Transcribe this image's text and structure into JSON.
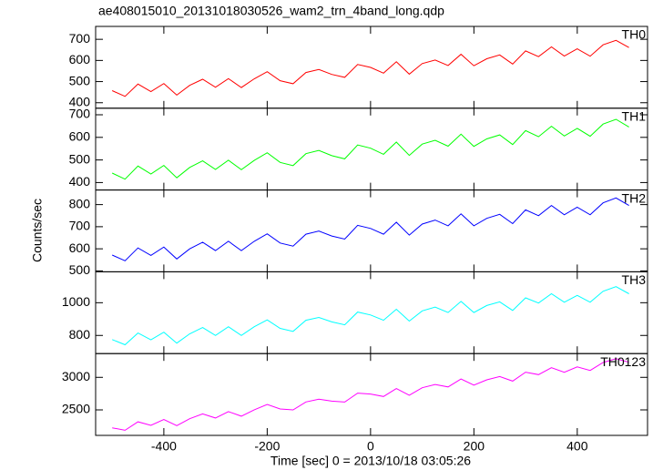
{
  "chart_data": {
    "type": "line",
    "title": "ae408015010_20131018030526_wam2_trn_4band_long.qdp",
    "xlabel": "Time [sec] 0 = 2013/10/18 03:05:26",
    "ylabel": "Counts/sec",
    "x": [
      -500,
      -475,
      -450,
      -425,
      -400,
      -375,
      -350,
      -325,
      -300,
      -275,
      -250,
      -225,
      -200,
      -175,
      -150,
      -125,
      -100,
      -75,
      -50,
      -25,
      0,
      25,
      50,
      75,
      100,
      125,
      150,
      175,
      200,
      225,
      250,
      275,
      300,
      325,
      350,
      375,
      400,
      425,
      450,
      475,
      500
    ],
    "xlim": [
      -532,
      536
    ],
    "xticks": [
      -400,
      -200,
      0,
      200,
      400
    ],
    "panels": [
      {
        "name": "TH0",
        "color": "#ff0000",
        "ylim": [
          374,
          761
        ],
        "yticks": [
          400,
          500,
          600,
          700
        ],
        "values": [
          457,
          430,
          488,
          453,
          491,
          436,
          482,
          511,
          473,
          514,
          472,
          513,
          547,
          504,
          490,
          543,
          557,
          534,
          520,
          581,
          567,
          540,
          594,
          535,
          585,
          602,
          576,
          629,
          575,
          608,
          626,
          583,
          645,
          618,
          664,
          621,
          655,
          620,
          674,
          695,
          661
        ]
      },
      {
        "name": "TH1",
        "color": "#00ff00",
        "ylim": [
          367,
          729
        ],
        "yticks": [
          400,
          500,
          600,
          700
        ],
        "values": [
          442,
          415,
          473,
          438,
          476,
          421,
          467,
          496,
          458,
          499,
          457,
          498,
          532,
          489,
          475,
          528,
          542,
          519,
          505,
          566,
          552,
          525,
          579,
          520,
          570,
          587,
          561,
          614,
          560,
          593,
          611,
          568,
          630,
          603,
          649,
          606,
          640,
          605,
          659,
          680,
          646
        ]
      },
      {
        "name": "TH2",
        "color": "#0000ff",
        "ylim": [
          496,
          866
        ],
        "yticks": [
          500,
          600,
          700,
          800
        ],
        "values": [
          572,
          546,
          604,
          570,
          608,
          554,
          600,
          630,
          592,
          634,
          592,
          634,
          668,
          626,
          612,
          666,
          680,
          658,
          644,
          706,
          692,
          666,
          720,
          662,
          712,
          730,
          704,
          758,
          704,
          738,
          756,
          714,
          776,
          750,
          796,
          754,
          788,
          754,
          808,
          830,
          796
        ]
      },
      {
        "name": "TH3",
        "color": "#00ffff",
        "ylim": [
          689,
          1189
        ],
        "yticks": [
          800,
          1000
        ],
        "values": [
          775,
          743,
          815,
          773,
          820,
          753,
          810,
          848,
          800,
          853,
          800,
          853,
          895,
          843,
          825,
          893,
          910,
          883,
          865,
          943,
          925,
          893,
          960,
          888,
          950,
          973,
          940,
          1008,
          940,
          983,
          1005,
          953,
          1030,
          998,
          1055,
          1003,
          1045,
          1003,
          1070,
          1098,
          1055
        ]
      },
      {
        "name": "TH0123",
        "color": "#ff00ff",
        "ylim": [
          2108,
          3365
        ],
        "yticks": [
          2500,
          3000
        ],
        "values": [
          2224,
          2186,
          2316,
          2262,
          2352,
          2258,
          2364,
          2438,
          2376,
          2474,
          2404,
          2502,
          2584,
          2514,
          2500,
          2622,
          2664,
          2634,
          2620,
          2758,
          2744,
          2706,
          2828,
          2726,
          2840,
          2890,
          2852,
          2974,
          2880,
          2962,
          3012,
          2942,
          3080,
          3042,
          3148,
          3078,
          3160,
          3106,
          3228,
          3286,
          3232
        ]
      }
    ]
  }
}
